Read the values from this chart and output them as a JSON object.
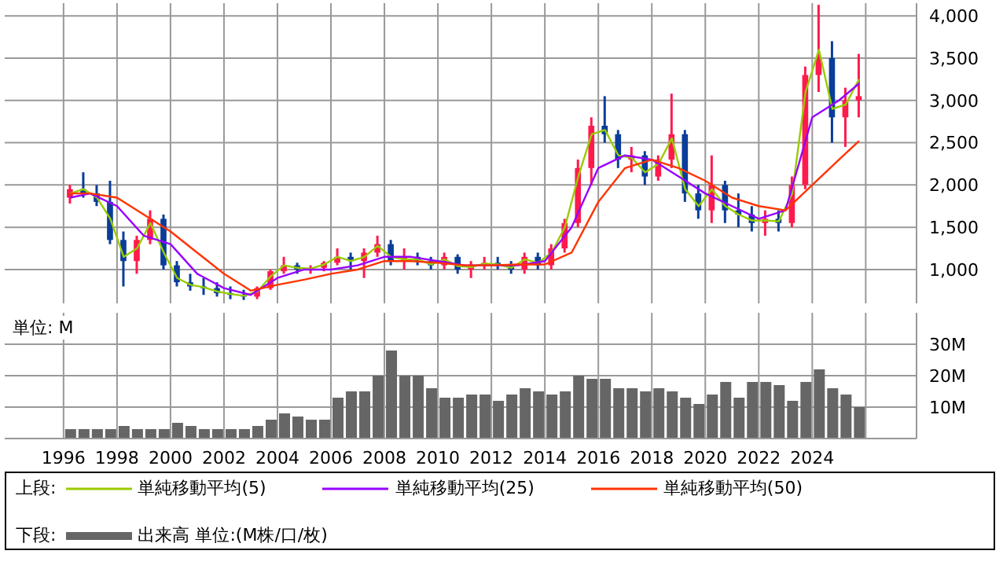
{
  "chart_data": [
    {
      "type": "candlestick",
      "legend_title": "上段:",
      "legend": "bottom",
      "grid": true,
      "tick_labels": "y",
      "xlim": [
        1993.8,
        2027.9
      ],
      "xticks": [
        1996,
        1998,
        2000,
        2002,
        2004,
        2006,
        2008,
        2010,
        2012,
        2014,
        2016,
        2018,
        2020,
        2022,
        2024,
        2026
      ],
      "ylim": [
        600,
        4150
      ],
      "yticks": [
        {
          "value": 1000,
          "label": "1,000"
        },
        {
          "value": 1500,
          "label": "1,500"
        },
        {
          "value": 2000,
          "label": "2,000"
        },
        {
          "value": 2500,
          "label": "2,500"
        },
        {
          "value": 3000,
          "label": "3,000"
        },
        {
          "value": 3500,
          "label": "3,500"
        },
        {
          "value": 4000,
          "label": "4,000"
        }
      ],
      "series": [
        {
          "x": [
            1996.25,
            1996.75,
            1997.25,
            1997.75,
            1998.25,
            1998.75,
            1999.25,
            1999.75,
            2000.25,
            2000.75,
            2001.25,
            2001.75,
            2002.25,
            2002.75,
            2003.25,
            2003.75,
            2004.25,
            2004.75,
            2005.25,
            2005.75,
            2006.25,
            2006.75,
            2007.25,
            2007.75,
            2008.25,
            2008.75,
            2009.25,
            2009.75,
            2010.25,
            2010.75,
            2011.25,
            2011.75,
            2012.25,
            2012.75,
            2013.25,
            2013.75,
            2014.25,
            2014.75,
            2015.25,
            2015.75,
            2016.25,
            2016.75,
            2017.25,
            2017.75,
            2018.25,
            2018.75,
            2019.25,
            2019.75,
            2020.25,
            2020.75,
            2021.25,
            2021.75,
            2022.25,
            2022.75,
            2023.25,
            2023.75,
            2024.25,
            2024.75,
            2025.25,
            2025.75
          ],
          "ohlc": [
            [
              1850,
              2000,
              1780,
              1950
            ],
            [
              1950,
              2150,
              1850,
              1900
            ],
            [
              1900,
              2000,
              1750,
              1800
            ],
            [
              1800,
              2050,
              1300,
              1350
            ],
            [
              1350,
              1450,
              800,
              1100
            ],
            [
              1100,
              1400,
              950,
              1350
            ],
            [
              1350,
              1700,
              1300,
              1600
            ],
            [
              1600,
              1650,
              1000,
              1050
            ],
            [
              1050,
              1100,
              800,
              850
            ],
            [
              850,
              950,
              750,
              800
            ],
            [
              800,
              900,
              700,
              780
            ],
            [
              780,
              850,
              680,
              720
            ],
            [
              720,
              800,
              650,
              700
            ],
            [
              700,
              760,
              640,
              680
            ],
            [
              680,
              800,
              650,
              780
            ],
            [
              780,
              1000,
              760,
              980
            ],
            [
              980,
              1150,
              950,
              1050
            ],
            [
              1050,
              1080,
              950,
              1000
            ],
            [
              1000,
              1050,
              950,
              1020
            ],
            [
              1020,
              1100,
              980,
              1080
            ],
            [
              1080,
              1250,
              1050,
              1150
            ],
            [
              1150,
              1200,
              1000,
              1100
            ],
            [
              1100,
              1250,
              900,
              1200
            ],
            [
              1200,
              1400,
              1150,
              1300
            ],
            [
              1300,
              1350,
              1050,
              1100
            ],
            [
              1100,
              1250,
              1000,
              1150
            ],
            [
              1150,
              1200,
              1050,
              1100
            ],
            [
              1100,
              1150,
              1000,
              1050
            ],
            [
              1050,
              1200,
              1000,
              1150
            ],
            [
              1150,
              1180,
              950,
              1000
            ],
            [
              1000,
              1100,
              900,
              1050
            ],
            [
              1050,
              1150,
              1000,
              1080
            ],
            [
              1080,
              1150,
              1000,
              1050
            ],
            [
              1050,
              1100,
              950,
              1000
            ],
            [
              1000,
              1200,
              950,
              1150
            ],
            [
              1150,
              1200,
              1000,
              1050
            ],
            [
              1050,
              1300,
              1000,
              1250
            ],
            [
              1250,
              1600,
              1200,
              1550
            ],
            [
              1550,
              2300,
              1500,
              2200
            ],
            [
              2200,
              2800,
              2000,
              2700
            ],
            [
              2700,
              3050,
              2500,
              2600
            ],
            [
              2600,
              2650,
              2200,
              2300
            ],
            [
              2300,
              2450,
              2150,
              2350
            ],
            [
              2350,
              2400,
              2000,
              2100
            ],
            [
              2100,
              2350,
              2050,
              2300
            ],
            [
              2300,
              3080,
              2200,
              2600
            ],
            [
              2600,
              2650,
              1800,
              1900
            ],
            [
              1900,
              2000,
              1600,
              1700
            ],
            [
              1700,
              2350,
              1550,
              2000
            ],
            [
              2000,
              2050,
              1550,
              1700
            ],
            [
              1700,
              1900,
              1500,
              1650
            ],
            [
              1650,
              1750,
              1450,
              1550
            ],
            [
              1550,
              1700,
              1400,
              1600
            ],
            [
              1600,
              1700,
              1450,
              1550
            ],
            [
              1550,
              2100,
              1500,
              2000
            ],
            [
              2000,
              3400,
              1950,
              3300
            ],
            [
              3300,
              4130,
              3100,
              3500
            ],
            [
              3500,
              3700,
              2500,
              2800
            ],
            [
              2800,
              3150,
              2450,
              3000
            ],
            [
              3000,
              3550,
              2800,
              3050
            ]
          ]
        },
        {
          "type": "line",
          "name": "単純移動平均(5)",
          "color": "#99cc00",
          "x": [
            1996.25,
            1996.75,
            1997.25,
            1997.75,
            1998.25,
            1998.75,
            1999.25,
            1999.75,
            2000.25,
            2000.75,
            2001.25,
            2001.75,
            2002.25,
            2002.75,
            2003.25,
            2003.75,
            2004.25,
            2004.75,
            2005.25,
            2005.75,
            2006.25,
            2006.75,
            2007.25,
            2007.75,
            2008.25,
            2008.75,
            2009.25,
            2009.75,
            2010.25,
            2010.75,
            2011.25,
            2011.75,
            2012.25,
            2012.75,
            2013.25,
            2013.75,
            2014.25,
            2014.75,
            2015.25,
            2015.75,
            2016.25,
            2016.75,
            2017.25,
            2017.75,
            2018.25,
            2018.75,
            2019.25,
            2019.75,
            2020.25,
            2020.75,
            2021.25,
            2021.75,
            2022.25,
            2022.75,
            2023.25,
            2023.75,
            2024.25,
            2024.75,
            2025.25,
            2025.75
          ],
          "values": [
            1900,
            1950,
            1850,
            1600,
            1150,
            1250,
            1550,
            1200,
            900,
            820,
            790,
            740,
            710,
            690,
            740,
            920,
            1050,
            1020,
            1010,
            1060,
            1150,
            1100,
            1150,
            1280,
            1150,
            1120,
            1120,
            1060,
            1120,
            1040,
            1030,
            1070,
            1060,
            1020,
            1120,
            1080,
            1200,
            1500,
            2100,
            2600,
            2650,
            2350,
            2320,
            2150,
            2250,
            2550,
            1950,
            1750,
            1950,
            1750,
            1650,
            1580,
            1580,
            1570,
            1900,
            3100,
            3600,
            2900,
            2950,
            3250
          ]
        },
        {
          "type": "line",
          "name": "単純移動平均(25)",
          "color": "#9900ff",
          "x": [
            1996.25,
            1997,
            1998,
            1999,
            2000,
            2001,
            2002,
            2003,
            2004,
            2005,
            2006,
            2007,
            2008,
            2009,
            2010,
            2011,
            2012,
            2013,
            2014,
            2015,
            2016,
            2017,
            2018,
            2019,
            2020,
            2021,
            2022,
            2023,
            2024,
            2025,
            2025.75
          ],
          "values": [
            1850,
            1900,
            1750,
            1400,
            1300,
            950,
            780,
            700,
            900,
            1000,
            1000,
            1050,
            1150,
            1150,
            1100,
            1050,
            1050,
            1050,
            1100,
            1500,
            2200,
            2350,
            2300,
            2100,
            1900,
            1750,
            1600,
            1700,
            2800,
            3000,
            3200
          ]
        },
        {
          "type": "line",
          "name": "単純移動平均(50)",
          "color": "#ff3300",
          "x": [
            1996.25,
            1997,
            1998,
            1999,
            2000,
            2001,
            2002,
            2003,
            2004,
            2005,
            2006,
            2007,
            2008,
            2009,
            2010,
            2011,
            2012,
            2013,
            2014,
            2015,
            2016,
            2017,
            2018,
            2019,
            2020,
            2021,
            2022,
            2023,
            2024,
            2025,
            2025.75
          ],
          "values": [
            1900,
            1900,
            1850,
            1650,
            1450,
            1200,
            950,
            750,
            820,
            880,
            950,
            1000,
            1100,
            1100,
            1080,
            1050,
            1050,
            1060,
            1060,
            1200,
            1800,
            2200,
            2300,
            2200,
            2050,
            1850,
            1750,
            1700,
            2000,
            2300,
            2520
          ]
        }
      ]
    },
    {
      "type": "bar",
      "legend_title": "下段:",
      "legend": "bottom",
      "grid": true,
      "ylabel": "単位: M",
      "xlim": [
        1993.8,
        2027.9
      ],
      "xticks": [
        1996,
        1998,
        2000,
        2002,
        2004,
        2006,
        2008,
        2010,
        2012,
        2014,
        2016,
        2018,
        2020,
        2022,
        2024,
        {
          "value": 2026,
          "label": null
        }
      ],
      "ylim": [
        0,
        40
      ],
      "yticks": [
        {
          "value": 10,
          "label": "10M"
        },
        {
          "value": 20,
          "label": "20M"
        },
        {
          "value": 30,
          "label": "30M"
        }
      ],
      "series": [
        {
          "name": "出来高 単位:(M株/口/枚)",
          "color": "#666666",
          "x": [
            1996.25,
            1996.75,
            1997.25,
            1997.75,
            1998.25,
            1998.75,
            1999.25,
            1999.75,
            2000.25,
            2000.75,
            2001.25,
            2001.75,
            2002.25,
            2002.75,
            2003.25,
            2003.75,
            2004.25,
            2004.75,
            2005.25,
            2005.75,
            2006.25,
            2006.75,
            2007.25,
            2007.75,
            2008.25,
            2008.75,
            2009.25,
            2009.75,
            2010.25,
            2010.75,
            2011.25,
            2011.75,
            2012.25,
            2012.75,
            2013.25,
            2013.75,
            2014.25,
            2014.75,
            2015.25,
            2015.75,
            2016.25,
            2016.75,
            2017.25,
            2017.75,
            2018.25,
            2018.75,
            2019.25,
            2019.75,
            2020.25,
            2020.75,
            2021.25,
            2021.75,
            2022.25,
            2022.75,
            2023.25,
            2023.75,
            2024.25,
            2024.75,
            2025.25,
            2025.75
          ],
          "values": [
            3,
            3,
            3,
            3,
            4,
            3,
            3,
            3,
            5,
            4,
            3,
            3,
            3,
            3,
            4,
            6,
            8,
            7,
            6,
            6,
            13,
            15,
            15,
            20,
            28,
            20,
            20,
            16,
            13,
            13,
            14,
            14,
            12,
            14,
            16,
            15,
            14,
            15,
            20,
            19,
            19,
            16,
            16,
            15,
            16,
            15,
            13,
            11,
            14,
            18,
            13,
            18,
            18,
            17,
            12,
            18,
            22,
            16,
            14,
            10
          ]
        }
      ]
    }
  ]
}
